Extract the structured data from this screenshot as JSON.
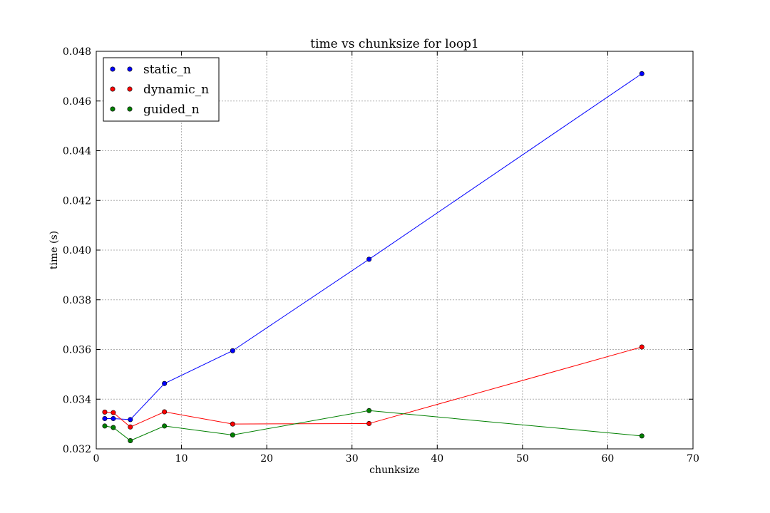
{
  "chart_data": {
    "type": "line",
    "title": "time vs chunksize for loop1",
    "xlabel": "chunksize",
    "ylabel": "time (s)",
    "xlim": [
      0,
      70
    ],
    "ylim": [
      0.032,
      0.048
    ],
    "x_ticks": [
      "0",
      "10",
      "20",
      "30",
      "40",
      "50",
      "60",
      "70"
    ],
    "y_ticks": [
      "0.032",
      "0.034",
      "0.036",
      "0.038",
      "0.040",
      "0.042",
      "0.044",
      "0.046",
      "0.048"
    ],
    "grid": true,
    "legend_position": "top-left",
    "x": [
      1,
      2,
      4,
      8,
      16,
      32,
      64
    ],
    "series": [
      {
        "name": "static_n",
        "color": "#0000ff",
        "values": [
          0.03322,
          0.03322,
          0.03318,
          0.03463,
          0.03595,
          0.03963,
          0.0471
        ]
      },
      {
        "name": "dynamic_n",
        "color": "#ff0000",
        "values": [
          0.03348,
          0.03346,
          0.03288,
          0.03349,
          0.033,
          0.03302,
          0.0361
        ]
      },
      {
        "name": "guided_n",
        "color": "#008000",
        "values": [
          0.03292,
          0.03286,
          0.03233,
          0.03292,
          0.03256,
          0.03354,
          0.03252
        ]
      }
    ]
  }
}
